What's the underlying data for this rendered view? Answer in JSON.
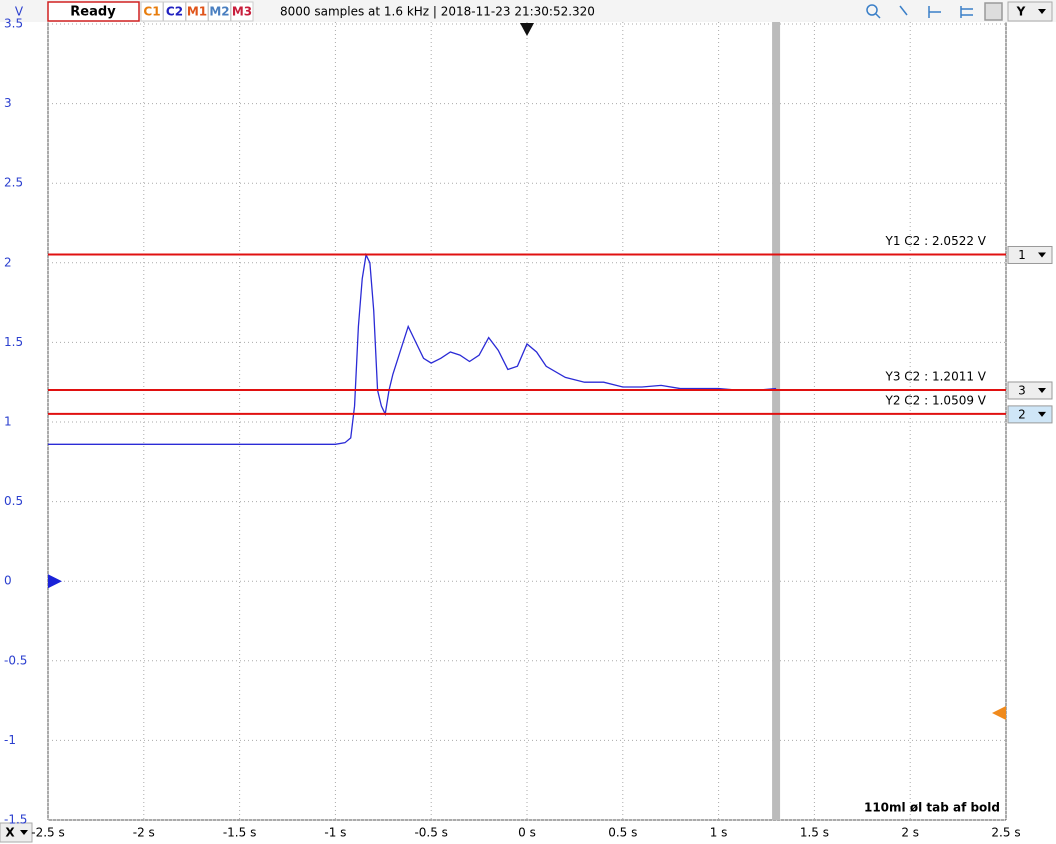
{
  "toolbar": {
    "axis_unit": "V",
    "status": "Ready",
    "channels": [
      "C1",
      "C2",
      "M1",
      "M2",
      "M3"
    ],
    "info": "8000 samples at 1.6 kHz | 2018-11-23 21:30:52.320",
    "y_button": "Y",
    "x_button": "X"
  },
  "chart_data": {
    "type": "line",
    "annotation": "110ml øl tab af bold",
    "x": [
      -2.5,
      -2.0,
      -1.5,
      -1.0,
      -0.95,
      -0.92,
      -0.9,
      -0.88,
      -0.86,
      -0.84,
      -0.82,
      -0.8,
      -0.78,
      -0.76,
      -0.74,
      -0.72,
      -0.7,
      -0.66,
      -0.62,
      -0.58,
      -0.54,
      -0.5,
      -0.45,
      -0.4,
      -0.35,
      -0.3,
      -0.25,
      -0.2,
      -0.15,
      -0.1,
      -0.05,
      0.0,
      0.05,
      0.1,
      0.2,
      0.3,
      0.4,
      0.5,
      0.6,
      0.7,
      0.8,
      0.9,
      1.0,
      1.1,
      1.2,
      1.3
    ],
    "series": [
      {
        "color": "#2b2bd6",
        "values": [
          0.86,
          0.86,
          0.86,
          0.86,
          0.87,
          0.9,
          1.1,
          1.6,
          1.9,
          2.05,
          2.0,
          1.7,
          1.2,
          1.1,
          1.05,
          1.2,
          1.3,
          1.45,
          1.6,
          1.5,
          1.4,
          1.37,
          1.4,
          1.44,
          1.42,
          1.38,
          1.42,
          1.53,
          1.45,
          1.33,
          1.35,
          1.49,
          1.44,
          1.35,
          1.28,
          1.25,
          1.25,
          1.22,
          1.22,
          1.23,
          1.21,
          1.21,
          1.21,
          1.2,
          1.2,
          1.21
        ]
      }
    ],
    "xlim": [
      -2.5,
      2.5
    ],
    "xticks": [
      {
        "value": -2.5,
        "label": "-2.5 s"
      },
      {
        "value": -2,
        "label": "-2 s"
      },
      {
        "value": -1.5,
        "label": "-1.5 s"
      },
      {
        "value": -1,
        "label": "-1 s"
      },
      {
        "value": -0.5,
        "label": "-0.5 s"
      },
      {
        "value": 0,
        "label": "0 s"
      },
      {
        "value": 0.5,
        "label": "0.5 s"
      },
      {
        "value": 1,
        "label": "1 s"
      },
      {
        "value": 1.5,
        "label": "1.5 s"
      },
      {
        "value": 2,
        "label": "2 s"
      },
      {
        "value": 2.5,
        "label": "2.5 s"
      }
    ],
    "ylim": [
      -1.5,
      3.5
    ],
    "yticks": [
      3.5,
      3,
      2.5,
      2,
      1.5,
      1,
      0.5,
      0,
      -0.5,
      -1,
      -1.5
    ],
    "grid": true,
    "cursors": [
      {
        "label": "Y1 C2 : 2.0522 V",
        "value": 2.0522,
        "marker": "1"
      },
      {
        "label": "Y3 C2 : 1.2011 V",
        "value": 1.2011,
        "marker": "3"
      },
      {
        "label": "Y2 C2 : 1.0509 V",
        "value": 1.0509,
        "marker": "2"
      }
    ],
    "x_cursor": 1.3
  }
}
